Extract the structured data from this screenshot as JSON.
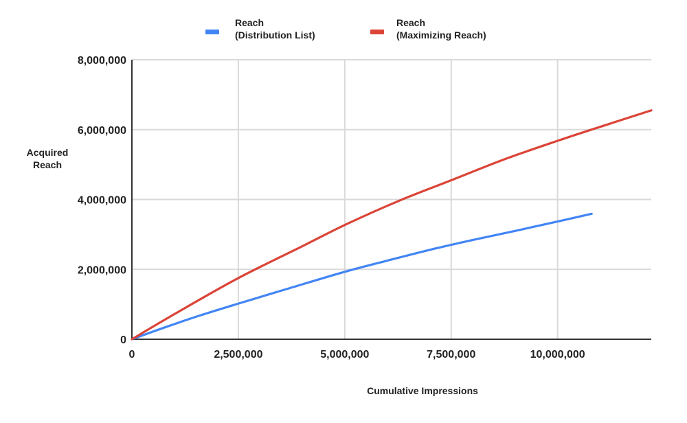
{
  "chart_data": {
    "type": "line",
    "title": "",
    "xlabel": "Cumulative Impressions",
    "ylabel": [
      "Acquired",
      "Reach"
    ],
    "xlim": [
      0,
      12200000
    ],
    "ylim": [
      0,
      8000000
    ],
    "grid": true,
    "legend_position": "top",
    "x_ticks": [
      {
        "value": 0,
        "label": "0"
      },
      {
        "value": 2500000,
        "label": "2,500,000"
      },
      {
        "value": 5000000,
        "label": "5,000,000"
      },
      {
        "value": 7500000,
        "label": "7,500,000"
      },
      {
        "value": 10000000,
        "label": "10,000,000"
      }
    ],
    "y_ticks": [
      {
        "value": 0,
        "label": "0"
      },
      {
        "value": 2000000,
        "label": "2,000,000"
      },
      {
        "value": 4000000,
        "label": "4,000,000"
      },
      {
        "value": 6000000,
        "label": "6,000,000"
      },
      {
        "value": 8000000,
        "label": "8,000,000"
      }
    ],
    "series": [
      {
        "name": [
          "Reach",
          "(Distribution List)"
        ],
        "color": "#4285f4",
        "x": [
          0,
          800000,
          1600000,
          2500000,
          3700000,
          5000000,
          6000000,
          7000000,
          8000000,
          9000000,
          10000000,
          10800000
        ],
        "y": [
          0,
          350000,
          680000,
          1020000,
          1460000,
          1930000,
          2250000,
          2560000,
          2840000,
          3100000,
          3370000,
          3590000
        ]
      },
      {
        "name": [
          "Reach",
          "(Maximizing Reach)"
        ],
        "color": "#db4437",
        "x": [
          0,
          1000000,
          2500000,
          4000000,
          5000000,
          6250000,
          7500000,
          8750000,
          10000000,
          11000000,
          12200000
        ],
        "y": [
          0,
          720000,
          1750000,
          2660000,
          3270000,
          3950000,
          4550000,
          5150000,
          5680000,
          6080000,
          6550000
        ]
      }
    ]
  }
}
